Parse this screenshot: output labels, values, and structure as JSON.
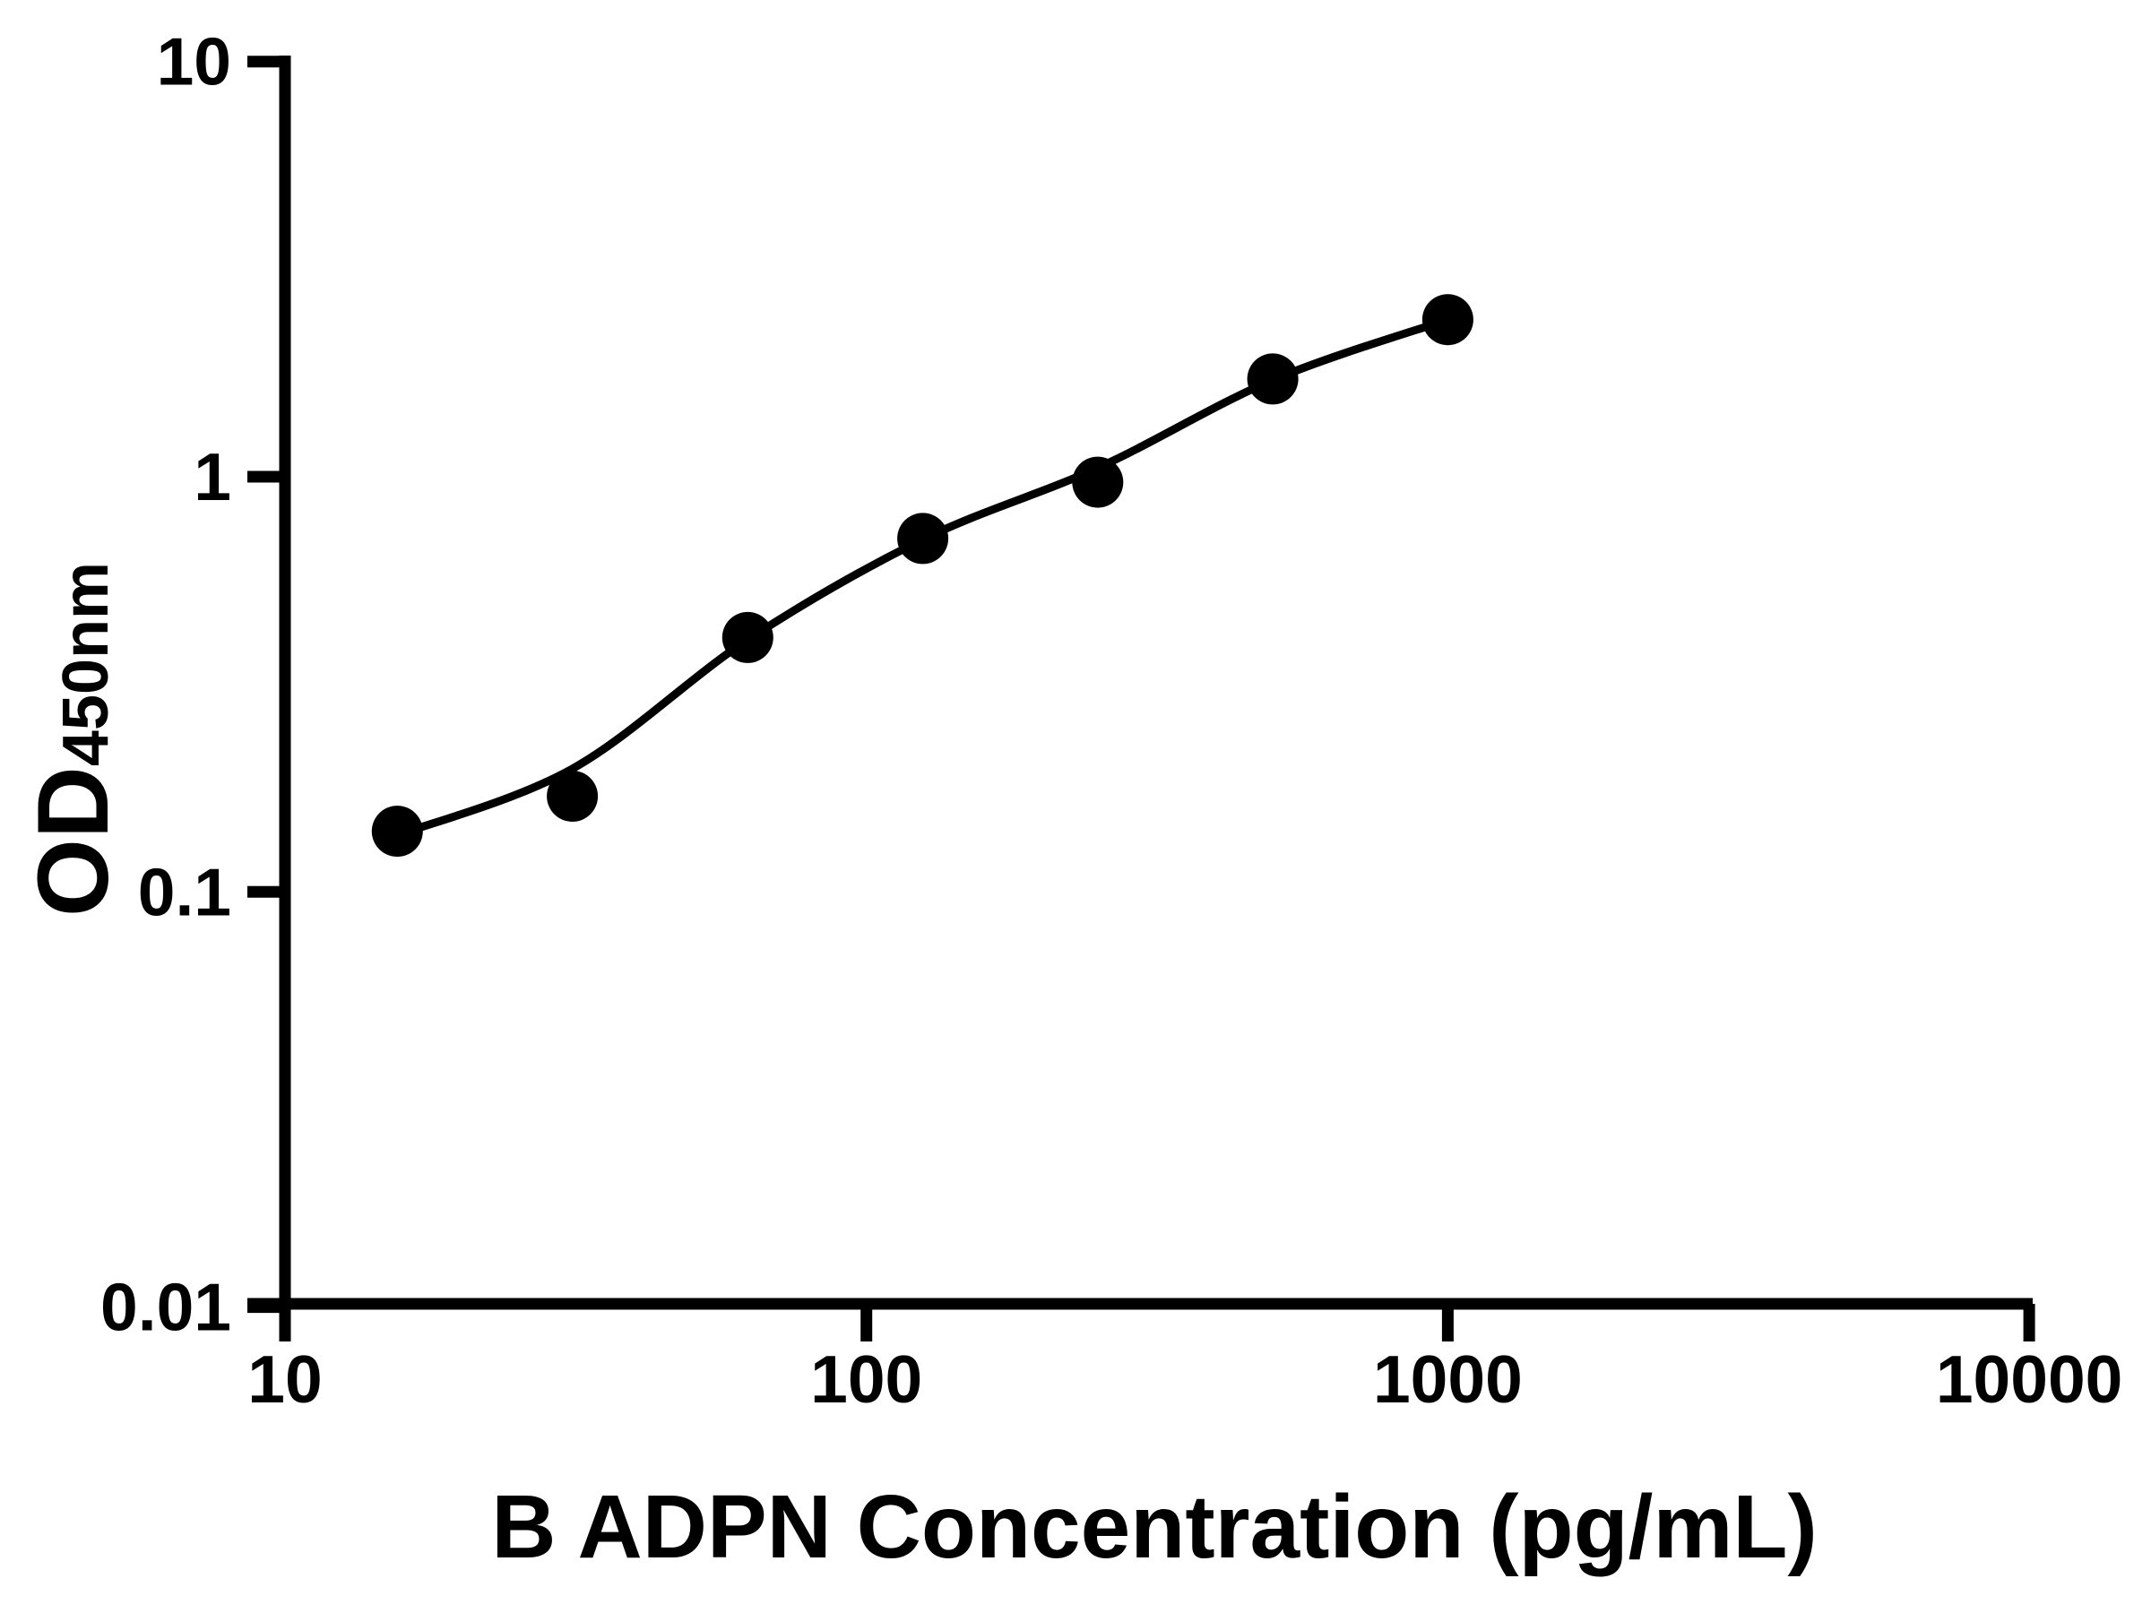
{
  "style": {
    "background_color": "#ffffff",
    "ink_color": "#000000"
  },
  "chart_data": {
    "type": "scatter",
    "title": "",
    "xlabel": "B ADPN Concentration (pg/mL)",
    "ylabel": "OD",
    "ylabel_subscript": "450nm",
    "x_scale": "log",
    "y_scale": "log",
    "xlim": [
      10,
      10000
    ],
    "ylim": [
      0.01,
      10
    ],
    "x_ticks": [
      10,
      100,
      1000,
      10000
    ],
    "x_tick_labels": [
      "10",
      "100",
      "1000",
      "10000"
    ],
    "y_ticks": [
      10,
      1,
      0.1,
      0.01
    ],
    "y_tick_labels": [
      "10",
      "1",
      "0.1",
      "0.01"
    ],
    "grid": false,
    "legend": null,
    "series": [
      {
        "name": "standard-points",
        "type": "scatter",
        "marker": "filled-circle",
        "color": "#000000",
        "x": [
          15.6,
          31.2,
          62.5,
          125,
          250,
          500,
          1000
        ],
        "y": [
          0.14,
          0.17,
          0.41,
          0.71,
          0.97,
          1.72,
          2.39
        ]
      },
      {
        "name": "fit-curve",
        "type": "line",
        "color": "#000000",
        "x": [
          15.6,
          31.2,
          62.5,
          125,
          250,
          500,
          1000
        ],
        "y": [
          0.137,
          0.198,
          0.405,
          0.706,
          1.05,
          1.71,
          2.39
        ]
      }
    ]
  }
}
